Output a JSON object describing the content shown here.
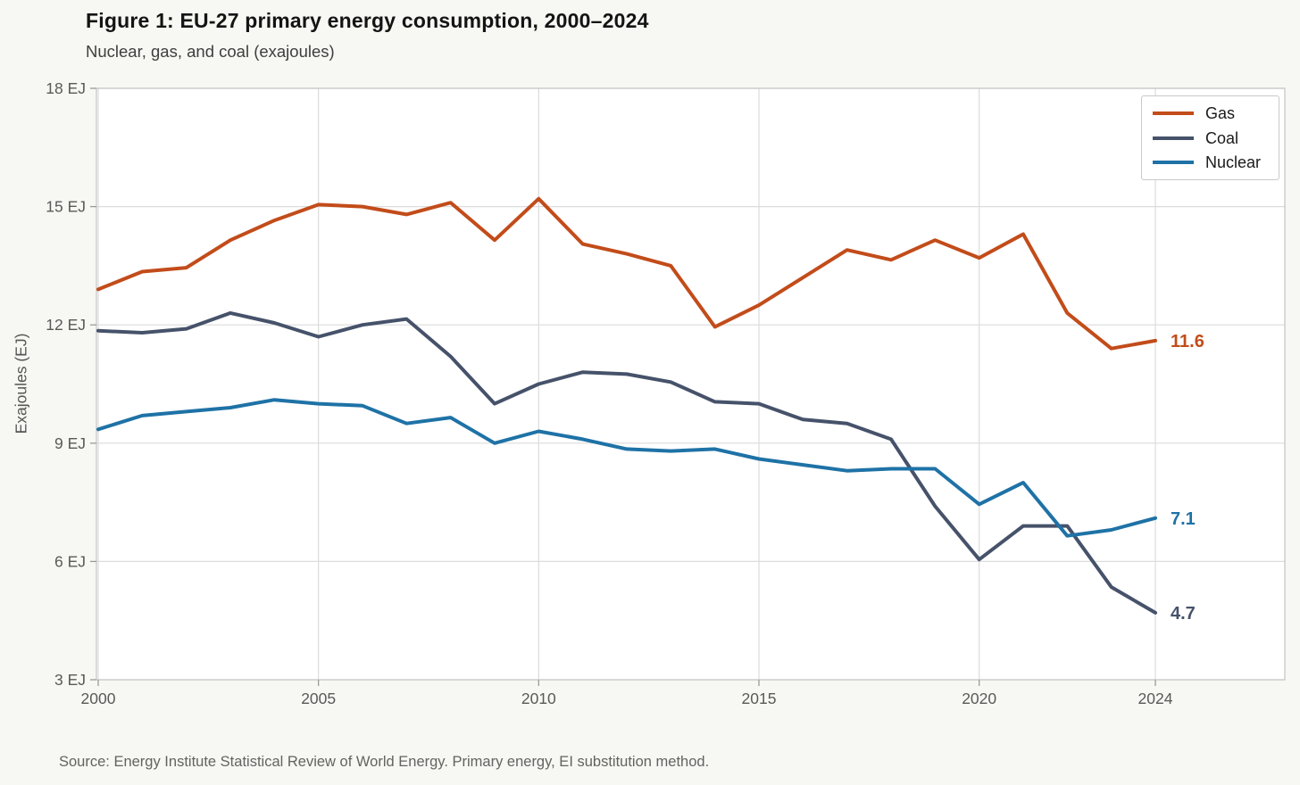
{
  "figure": {
    "title": "Figure 1: EU-27 primary energy consumption, 2000–2024",
    "subtitle": "Nuclear, gas, and coal (exajoules)",
    "source": "Source: Energy Institute Statistical Review of World Energy. Primary energy, EI substitution method.",
    "background_color": "#f7f7f3",
    "plot_background_color": "#ffffff",
    "gridline_color": "#dcdcdc",
    "spine_color": "#c8c8c8",
    "tick_text_color": "#595959"
  },
  "chart_data": {
    "type": "line",
    "title": "Figure 1: EU-27 primary energy consumption, 2000–2024",
    "subtitle": "Nuclear, gas, and coal (exajoules)",
    "xlabel": "",
    "ylabel": "Exajoules (EJ)",
    "x": [
      2000,
      2001,
      2002,
      2003,
      2004,
      2005,
      2006,
      2007,
      2008,
      2009,
      2010,
      2011,
      2012,
      2013,
      2014,
      2015,
      2016,
      2017,
      2018,
      2019,
      2020,
      2021,
      2022,
      2023,
      2024
    ],
    "series": [
      {
        "name": "Gas",
        "color": "#c24c1a",
        "end_label": "11.6",
        "values": [
          12.9,
          13.35,
          13.45,
          14.15,
          14.65,
          15.05,
          15.0,
          14.8,
          15.1,
          14.15,
          15.2,
          14.05,
          13.8,
          13.5,
          11.95,
          12.5,
          13.2,
          13.9,
          13.65,
          14.15,
          13.7,
          14.3,
          12.3,
          11.4,
          11.6
        ]
      },
      {
        "name": "Coal",
        "color": "#46526a",
        "end_label": "4.7",
        "values": [
          11.85,
          11.8,
          11.9,
          12.3,
          12.05,
          11.7,
          12.0,
          12.15,
          11.2,
          10.0,
          10.5,
          10.8,
          10.75,
          10.55,
          10.05,
          10.0,
          9.6,
          9.5,
          9.1,
          7.4,
          6.05,
          6.9,
          6.9,
          5.35,
          4.7
        ]
      },
      {
        "name": "Nuclear",
        "color": "#1e72a6",
        "end_label": "7.1",
        "values": [
          9.35,
          9.7,
          9.8,
          9.9,
          10.1,
          10.0,
          9.95,
          9.5,
          9.65,
          9.0,
          9.3,
          9.1,
          8.85,
          8.8,
          8.85,
          8.6,
          8.45,
          8.3,
          8.35,
          8.35,
          7.45,
          8.0,
          6.65,
          6.8,
          7.1
        ]
      }
    ],
    "xlim": [
      2000,
      2026.95
    ],
    "ylim": [
      3,
      18
    ],
    "xticks": [
      2000,
      2005,
      2010,
      2015,
      2020,
      2024
    ],
    "yticks": [
      3,
      6,
      9,
      12,
      15,
      18
    ],
    "ytick_labels": [
      "3 EJ",
      "6 EJ",
      "9 EJ",
      "12 EJ",
      "15 EJ",
      "18 EJ"
    ],
    "grid": true,
    "legend_position": "top-right",
    "line_width": 4
  }
}
